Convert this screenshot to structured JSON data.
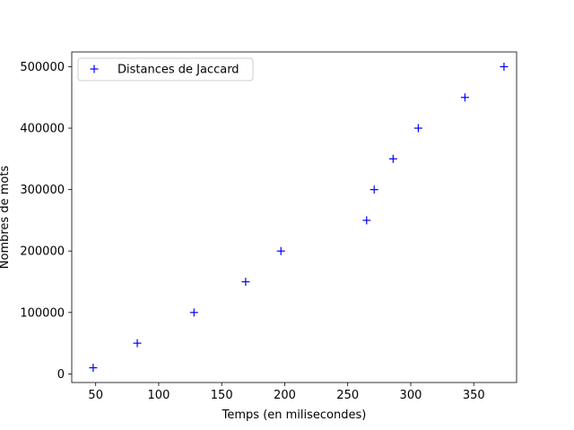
{
  "chart_data": {
    "type": "scatter",
    "marker": "+",
    "color": "#0000ff",
    "xlabel": "Temps (en milisecondes)",
    "ylabel": "Nombres de mots",
    "xlim": [
      31,
      384
    ],
    "ylim": [
      -14000,
      524000
    ],
    "xticks": [
      50,
      100,
      150,
      200,
      250,
      300,
      350
    ],
    "yticks": [
      0,
      100000,
      200000,
      300000,
      400000,
      500000
    ],
    "xtick_labels": [
      "50",
      "100",
      "150",
      "200",
      "250",
      "300",
      "350"
    ],
    "ytick_labels": [
      "0",
      "100000",
      "200000",
      "300000",
      "400000",
      "500000"
    ],
    "legend_position": "upper-left",
    "grid": false,
    "series": [
      {
        "name": "Distances de Jaccard",
        "x": [
          48,
          83,
          128,
          169,
          197,
          265,
          271,
          286,
          306,
          343,
          374
        ],
        "y": [
          10000,
          50000,
          100000,
          150000,
          200000,
          250000,
          300000,
          350000,
          400000,
          450000,
          500000
        ]
      }
    ]
  }
}
